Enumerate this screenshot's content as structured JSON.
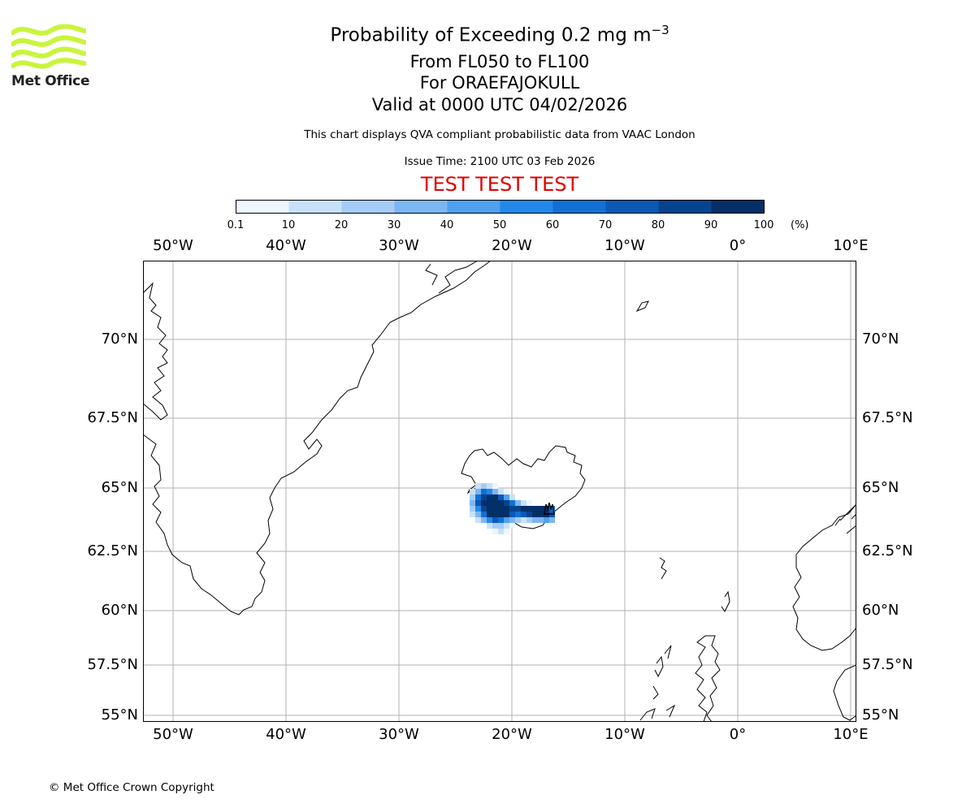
{
  "header": {
    "title_main": "Probability of Exceeding 0.2 mg m",
    "title_exp": "−3",
    "line_levels": "From FL050 to FL100",
    "line_volcano": "For ORAEFAJOKULL",
    "line_valid": "Valid at 0000 UTC 04/02/2026",
    "description": "This chart displays QVA compliant probabilistic data from VAAC London",
    "issue_time": "Issue Time: 2100 UTC 03 Feb 2026",
    "test_banner": "TEST TEST TEST"
  },
  "logo": {
    "text": "Met Office",
    "accent": "#c8f53c"
  },
  "colorbar": {
    "ticks": [
      "0.1",
      "10",
      "20",
      "30",
      "40",
      "50",
      "60",
      "70",
      "80",
      "90",
      "100"
    ],
    "unit": "(%)",
    "colors": [
      "#eef6ff",
      "#c7e1fb",
      "#a4ccf6",
      "#7cb6f2",
      "#4fa0ef",
      "#2288ea",
      "#1170d2",
      "#0a59b3",
      "#064490",
      "#032f69"
    ]
  },
  "map": {
    "lon_labels": [
      "50°W",
      "40°W",
      "30°W",
      "20°W",
      "10°W",
      "0°",
      "10°E"
    ],
    "lat_labels": [
      "70°N",
      "67.5°N",
      "65°N",
      "62.5°N",
      "60°N",
      "57.5°N",
      "55°N"
    ],
    "grid_color": "#b0b0b0"
  },
  "footer": {
    "copyright": "© Met Office Crown Copyright"
  }
}
